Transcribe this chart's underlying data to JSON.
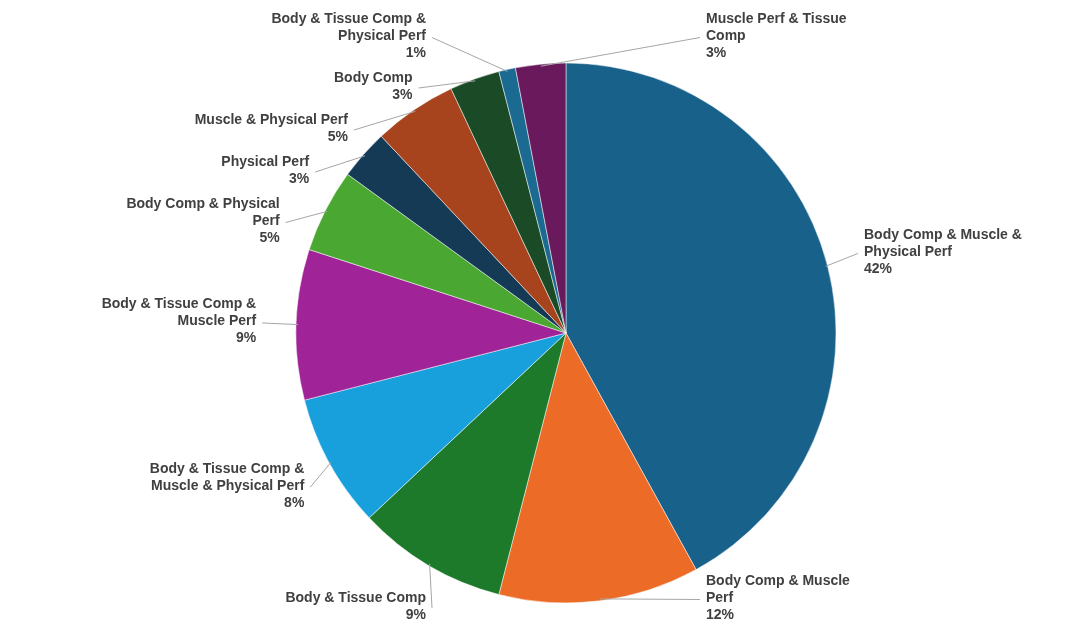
{
  "chart_data": {
    "type": "pie",
    "categories": [
      "Body Comp & Muscle & Physical Perf",
      "Body Comp & Muscle Perf",
      "Body & Tissue Comp",
      "Body & Tissue Comp & Muscle & Physical Perf",
      "Body & Tissue Comp & Muscle Perf",
      "Body Comp & Physical Perf",
      "Physical Perf",
      "Muscle & Physical Perf",
      "Body Comp",
      "Body & Tissue Comp & Physical Perf",
      "Muscle Perf & Tissue Comp"
    ],
    "values": [
      42,
      12,
      9,
      8,
      9,
      5,
      3,
      5,
      3,
      1,
      3
    ],
    "value_labels": [
      "42%",
      "12%",
      "9%",
      "8%",
      "9%",
      "5%",
      "3%",
      "5%",
      "3%",
      "1%",
      "3%"
    ],
    "colors": [
      "#17618a",
      "#ec6b27",
      "#1c7a2a",
      "#18a0dc",
      "#a02498",
      "#4aa832",
      "#143a55",
      "#a8441d",
      "#1b4a26",
      "#1a6a92",
      "#6a1a5c"
    ]
  }
}
